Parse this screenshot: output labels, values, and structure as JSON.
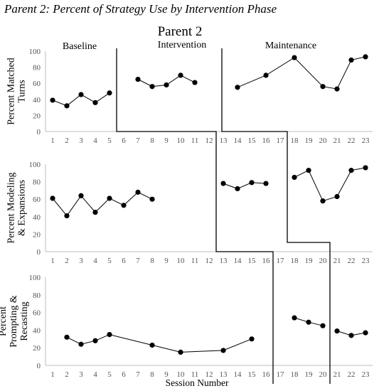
{
  "chart_data": {
    "type": "line",
    "caption": "Parent 2: Percent of Strategy Use by Intervention Phase",
    "title": "Parent 2",
    "xlabel": "Session Number",
    "phases": [
      "Baseline",
      "Intervention",
      "Maintenance"
    ],
    "x_ticks": [
      1,
      2,
      3,
      4,
      5,
      6,
      7,
      8,
      9,
      10,
      11,
      12,
      13,
      14,
      15,
      16,
      17,
      18,
      19,
      20,
      21,
      22,
      23
    ],
    "ylim": [
      0,
      100
    ],
    "y_ticks": [
      0,
      20,
      40,
      60,
      80,
      100
    ],
    "phase_change_after_session": [
      5.5,
      12.5,
      16.5,
      17.5,
      20.5
    ],
    "panels": [
      {
        "ylabel_lines": [
          "Percent Matched",
          "Turns"
        ],
        "segments": [
          {
            "x": [
              1,
              2,
              3,
              4,
              5
            ],
            "y": [
              39,
              32,
              46,
              36,
              48
            ]
          },
          {
            "x": [
              7,
              8,
              9,
              10,
              11
            ],
            "y": [
              65,
              56,
              58,
              70,
              61
            ]
          },
          {
            "x": [
              14,
              16,
              18,
              20,
              21,
              22,
              23
            ],
            "y": [
              55,
              70,
              92,
              56,
              53,
              89,
              93
            ]
          }
        ]
      },
      {
        "ylabel_lines": [
          "Percent Modeling",
          "& Expansions"
        ],
        "segments": [
          {
            "x": [
              1,
              2,
              3,
              4,
              5,
              6,
              7,
              8
            ],
            "y": [
              61,
              41,
              64,
              45,
              61,
              53,
              68,
              60
            ]
          },
          {
            "x": [
              13,
              14,
              15,
              16
            ],
            "y": [
              78,
              72,
              79,
              78
            ]
          },
          {
            "x": [
              18,
              19,
              20,
              21,
              22,
              23
            ],
            "y": [
              85,
              93,
              58,
              63,
              93,
              96
            ]
          }
        ]
      },
      {
        "ylabel_lines": [
          "Percent",
          "Prompting &",
          "Recasting"
        ],
        "segments": [
          {
            "x": [
              2,
              3,
              4,
              5,
              8,
              10,
              13,
              15
            ],
            "y": [
              32,
              24,
              28,
              35,
              23,
              15,
              17,
              30
            ]
          },
          {
            "x": [
              18,
              19,
              20
            ],
            "y": [
              54,
              49,
              45
            ]
          },
          {
            "x": [
              21,
              22,
              23
            ],
            "y": [
              39,
              34,
              37
            ]
          }
        ]
      }
    ]
  }
}
